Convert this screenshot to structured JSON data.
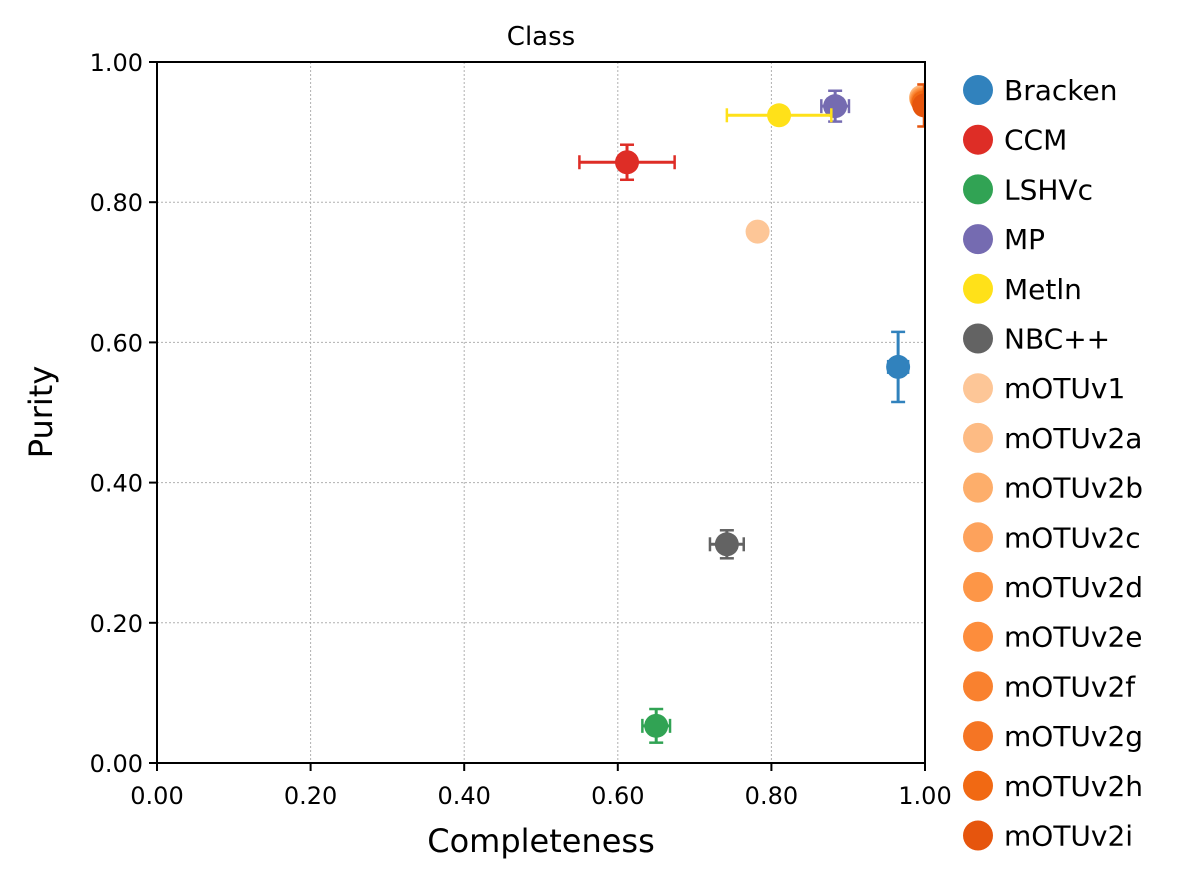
{
  "chart_data": {
    "type": "scatter",
    "title": "Class",
    "xlabel": "Completeness",
    "ylabel": "Purity",
    "xlim": [
      0,
      1
    ],
    "ylim": [
      0,
      1
    ],
    "xticks": [
      "0.00",
      "0.20",
      "0.40",
      "0.60",
      "0.80",
      "1.00"
    ],
    "yticks": [
      "0.00",
      "0.20",
      "0.40",
      "0.60",
      "0.80",
      "1.00"
    ],
    "grid": true,
    "legend_position": "outside-right",
    "series": [
      {
        "name": "Bracken",
        "color": "#3182bd",
        "x": 0.965,
        "y": 0.565,
        "x_err": 0.013,
        "y_err": 0.05
      },
      {
        "name": "CCM",
        "color": "#de2d26",
        "x": 0.612,
        "y": 0.857,
        "x_err": 0.062,
        "y_err": 0.025
      },
      {
        "name": "LSHVc",
        "color": "#31a354",
        "x": 0.65,
        "y": 0.053,
        "x_err": 0.018,
        "y_err": 0.024
      },
      {
        "name": "MP",
        "color": "#756bb1",
        "x": 0.883,
        "y": 0.937,
        "x_err": 0.018,
        "y_err": 0.022
      },
      {
        "name": "Metln",
        "color": "#ffe119",
        "x": 0.81,
        "y": 0.924,
        "x_err": 0.068,
        "y_err": 0.0
      },
      {
        "name": "NBC++",
        "color": "#636363",
        "x": 0.742,
        "y": 0.312,
        "x_err": 0.022,
        "y_err": 0.02
      },
      {
        "name": "mOTUv1",
        "color": "#fdc697",
        "x": 0.782,
        "y": 0.758,
        "x_err": 0.0,
        "y_err": 0.0
      },
      {
        "name": "mOTUv2a",
        "color": "#fdbb84",
        "x": 0.995,
        "y": 0.95,
        "x_err": 0.0,
        "y_err": 0.0
      },
      {
        "name": "mOTUv2b",
        "color": "#fdae6b",
        "x": 0.995,
        "y": 0.948,
        "x_err": 0.0,
        "y_err": 0.0
      },
      {
        "name": "mOTUv2c",
        "color": "#fda25c",
        "x": 0.996,
        "y": 0.947,
        "x_err": 0.0,
        "y_err": 0.0
      },
      {
        "name": "mOTUv2d",
        "color": "#fd9647",
        "x": 0.996,
        "y": 0.946,
        "x_err": 0.0,
        "y_err": 0.0
      },
      {
        "name": "mOTUv2e",
        "color": "#fd8d3c",
        "x": 0.997,
        "y": 0.945,
        "x_err": 0.0,
        "y_err": 0.0
      },
      {
        "name": "mOTUv2f",
        "color": "#f9812f",
        "x": 0.997,
        "y": 0.944,
        "x_err": 0.0,
        "y_err": 0.0
      },
      {
        "name": "mOTUv2g",
        "color": "#f57524",
        "x": 0.998,
        "y": 0.943,
        "x_err": 0.0,
        "y_err": 0.0
      },
      {
        "name": "mOTUv2h",
        "color": "#f16913",
        "x": 0.998,
        "y": 0.942,
        "x_err": 0.0,
        "y_err": 0.0
      },
      {
        "name": "mOTUv2i",
        "color": "#e6550d",
        "x": 0.999,
        "y": 0.938,
        "x_err": 0.0,
        "y_err": 0.03
      }
    ]
  }
}
